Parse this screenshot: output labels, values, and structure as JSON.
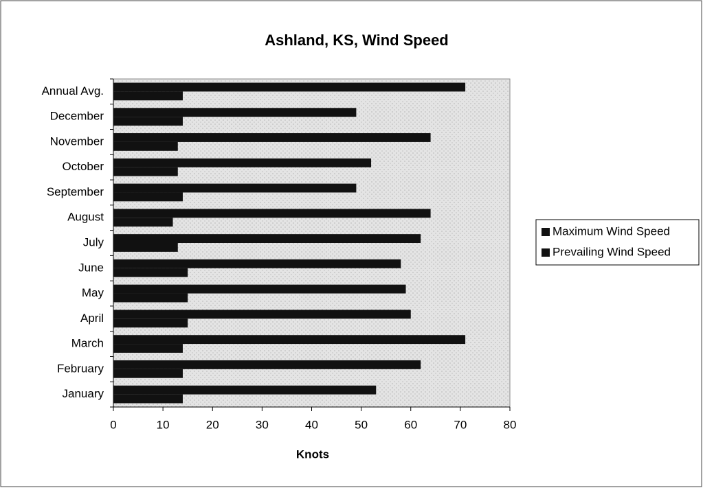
{
  "chart_data": {
    "type": "bar",
    "orientation": "horizontal",
    "title": "Ashland, KS, Wind Speed",
    "x_label": "Knots",
    "categories": [
      "January",
      "February",
      "March",
      "April",
      "May",
      "June",
      "July",
      "August",
      "September",
      "October",
      "November",
      "December",
      "Annual Avg."
    ],
    "series": [
      {
        "name": "Maximum Wind Speed",
        "color": "#111111",
        "values": [
          53,
          62,
          71,
          60,
          59,
          58,
          62,
          64,
          49,
          52,
          64,
          49,
          71
        ]
      },
      {
        "name": "Prevailing Wind Speed",
        "color": "#111111",
        "values": [
          14,
          14,
          14,
          15,
          15,
          15,
          13,
          12,
          14,
          13,
          13,
          14,
          14
        ]
      }
    ],
    "xlim": [
      0,
      80
    ],
    "xticks": [
      0,
      10,
      20,
      30,
      40,
      50,
      60,
      70,
      80
    ],
    "grid": false,
    "legend": "right"
  }
}
